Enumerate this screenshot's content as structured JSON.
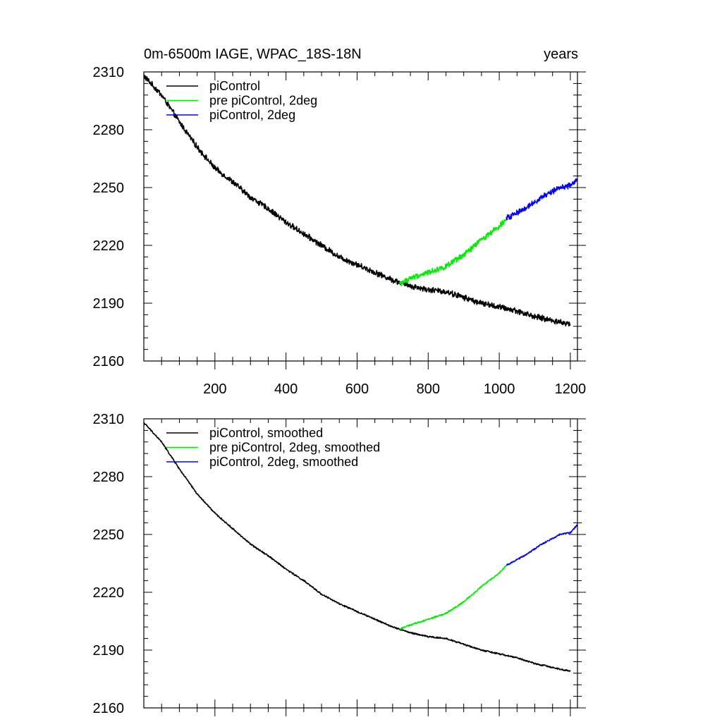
{
  "chart_data": [
    {
      "type": "line",
      "title_left": "0m-6500m IAGE, WPAC_18S-18N",
      "title_right": "years",
      "xlabel": "",
      "ylabel": "",
      "xlim": [
        0,
        1220
      ],
      "ylim": [
        2160,
        2310
      ],
      "xticks": [
        200,
        400,
        600,
        800,
        1000,
        1200
      ],
      "xtick_labels": [
        "200",
        "400",
        "600",
        "800",
        "1000",
        "1200"
      ],
      "yticks": [
        2160,
        2190,
        2220,
        2250,
        2280,
        2310
      ],
      "ytick_labels": [
        "2160",
        "2190",
        "2220",
        "2250",
        "2280",
        "2310"
      ],
      "legend_position": "top-left",
      "series": [
        {
          "name": "piControl",
          "color": "#000000",
          "noise": 1.3,
          "points": [
            [
              0,
              2308
            ],
            [
              50,
              2298
            ],
            [
              100,
              2284
            ],
            [
              150,
              2271
            ],
            [
              200,
              2260
            ],
            [
              250,
              2253
            ],
            [
              300,
              2245
            ],
            [
              350,
              2239
            ],
            [
              400,
              2232
            ],
            [
              450,
              2226
            ],
            [
              500,
              2220
            ],
            [
              550,
              2214
            ],
            [
              600,
              2210
            ],
            [
              650,
              2206
            ],
            [
              700,
              2202
            ],
            [
              750,
              2199
            ],
            [
              800,
              2197
            ],
            [
              850,
              2196
            ],
            [
              900,
              2193
            ],
            [
              950,
              2190
            ],
            [
              1000,
              2188
            ],
            [
              1050,
              2186
            ],
            [
              1100,
              2183
            ],
            [
              1150,
              2181
            ],
            [
              1200,
              2179
            ]
          ]
        },
        {
          "name": "pre piControl, 2deg",
          "color": "#00ee00",
          "noise": 1.3,
          "points": [
            [
              720,
              2200
            ],
            [
              750,
              2203
            ],
            [
              800,
              2206
            ],
            [
              850,
              2209
            ],
            [
              900,
              2215
            ],
            [
              950,
              2223
            ],
            [
              1000,
              2230
            ],
            [
              1020,
              2234
            ]
          ]
        },
        {
          "name": "piControl, 2deg",
          "color": "#0000ff",
          "noise": 1.3,
          "points": [
            [
              1020,
              2234
            ],
            [
              1070,
              2239
            ],
            [
              1120,
              2245
            ],
            [
              1170,
              2250
            ],
            [
              1200,
              2251
            ],
            [
              1220,
              2254
            ]
          ]
        }
      ]
    },
    {
      "type": "line",
      "title_left": "",
      "title_right": "",
      "xlabel": "",
      "ylabel": "",
      "xlim": [
        0,
        1220
      ],
      "ylim": [
        2160,
        2310
      ],
      "xticks": [
        200,
        400,
        600,
        800,
        1000,
        1200
      ],
      "xtick_labels": [],
      "yticks": [
        2160,
        2190,
        2220,
        2250,
        2280,
        2310
      ],
      "ytick_labels": [
        "2160",
        "2190",
        "2220",
        "2250",
        "2280",
        "2310"
      ],
      "legend_position": "top-left",
      "series": [
        {
          "name": "piControl, smoothed",
          "color": "#000000",
          "noise": 0.35,
          "points": [
            [
              0,
              2308
            ],
            [
              50,
              2298
            ],
            [
              100,
              2284
            ],
            [
              150,
              2271
            ],
            [
              200,
              2261
            ],
            [
              250,
              2253
            ],
            [
              300,
              2245
            ],
            [
              350,
              2239
            ],
            [
              400,
              2232
            ],
            [
              450,
              2226
            ],
            [
              500,
              2219
            ],
            [
              550,
              2214
            ],
            [
              600,
              2210
            ],
            [
              650,
              2206
            ],
            [
              700,
              2202
            ],
            [
              750,
              2199
            ],
            [
              800,
              2197
            ],
            [
              850,
              2196
            ],
            [
              900,
              2193
            ],
            [
              950,
              2190
            ],
            [
              1000,
              2188
            ],
            [
              1050,
              2186
            ],
            [
              1100,
              2183
            ],
            [
              1150,
              2181
            ],
            [
              1200,
              2179
            ]
          ]
        },
        {
          "name": "pre piControl, 2deg, smoothed",
          "color": "#00ee00",
          "noise": 0.35,
          "points": [
            [
              720,
              2201
            ],
            [
              750,
              2203
            ],
            [
              800,
              2206
            ],
            [
              850,
              2209
            ],
            [
              900,
              2215
            ],
            [
              950,
              2223
            ],
            [
              1000,
              2230
            ],
            [
              1020,
              2234
            ]
          ]
        },
        {
          "name": "piControl, 2deg, smoothed",
          "color": "#0000ff",
          "noise": 0.35,
          "points": [
            [
              1020,
              2234
            ],
            [
              1070,
              2239
            ],
            [
              1120,
              2245
            ],
            [
              1170,
              2250
            ],
            [
              1200,
              2251
            ],
            [
              1220,
              2255
            ]
          ]
        }
      ]
    }
  ]
}
